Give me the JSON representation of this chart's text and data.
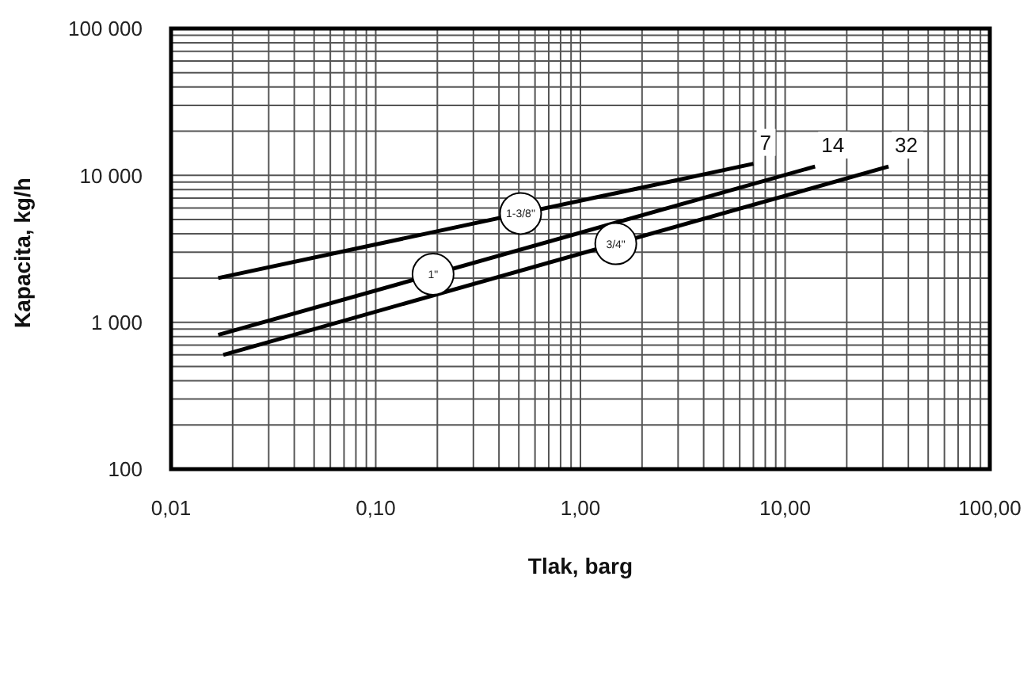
{
  "chart_data": {
    "type": "line",
    "xlabel": "Tlak, barg",
    "ylabel": "Kapacita, kg/h",
    "log": "xy",
    "grid": true,
    "legend": false,
    "marker": "none",
    "line_style": "solid",
    "xlim": [
      0.01,
      100
    ],
    "ylim": [
      100,
      100000
    ],
    "xticks": [
      {
        "value": 0.01,
        "label": "0,01"
      },
      {
        "value": 0.1,
        "label": "0,10"
      },
      {
        "value": 1,
        "label": "1,00"
      },
      {
        "value": 10,
        "label": "10,00"
      },
      {
        "value": 100,
        "label": "100,00"
      }
    ],
    "yticks": [
      100,
      {
        "value": 1000,
        "label": "1 000"
      },
      {
        "value": 10000,
        "label": "10 000"
      },
      {
        "value": 100000,
        "label": "100 000"
      }
    ],
    "series": [
      {
        "name": "1-3/8\"",
        "color": "#000000",
        "x": [
          0.017,
          7
        ],
        "values": [
          2000,
          12000
        ]
      },
      {
        "name": "1\"",
        "color": "#000000",
        "x": [
          0.017,
          14
        ],
        "values": [
          820,
          11500
        ]
      },
      {
        "name": "3/4\"",
        "color": "#000000",
        "x": [
          0.018,
          32
        ],
        "values": [
          600,
          11500
        ]
      }
    ],
    "annotations": [
      {
        "text": "7",
        "x": 7,
        "y": 12000
      },
      {
        "text": "14",
        "x": 14,
        "y": 11500
      },
      {
        "text": "32",
        "x": 32,
        "y": 11500
      }
    ]
  }
}
